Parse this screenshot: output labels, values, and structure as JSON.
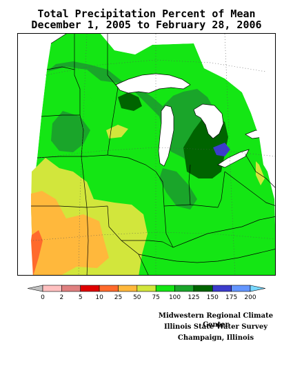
{
  "header": {
    "title_line1": "Total Precipitation Percent of Mean",
    "title_line2": "December 1, 2005 to February 28, 2006"
  },
  "legend": {
    "labels": [
      "0",
      "2",
      "5",
      "10",
      "25",
      "50",
      "75",
      "100",
      "125",
      "150",
      "175",
      "200"
    ],
    "colors": [
      "#c0c0c0",
      "#ffc0c0",
      "#e08080",
      "#e00000",
      "#ff6a2c",
      "#ffb83c",
      "#d2e63c",
      "#14e614",
      "#1aa52a",
      "#006400",
      "#3c3ccc",
      "#6496ff",
      "#78d8ff"
    ]
  },
  "credits": {
    "line1": "Midwestern Regional Climate Center",
    "line2": "Illinois State Water Survey",
    "line3": "Champaign, Illinois"
  }
}
